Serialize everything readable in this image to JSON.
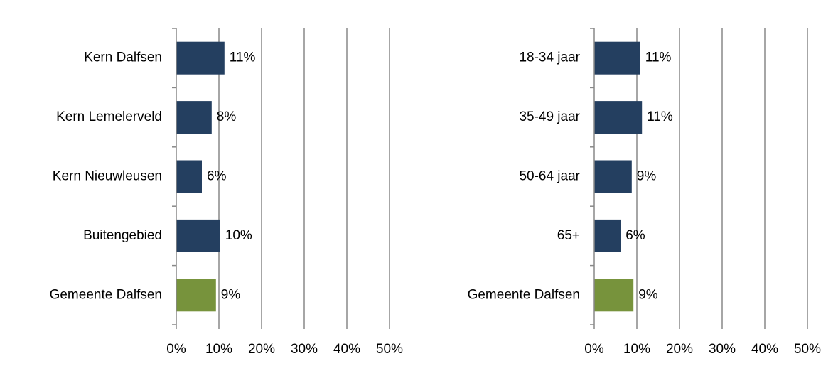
{
  "chart_data": [
    {
      "type": "barh",
      "categories": [
        "Kern Dalfsen",
        "Kern Lemelerveld",
        "Kern Nieuwleusen",
        "Buitengebied",
        "Gemeente Dalfsen"
      ],
      "values": [
        11.3,
        8.3,
        6,
        10.3,
        9.3
      ],
      "value_labels": [
        "11%",
        "8%",
        "6%",
        "10%",
        "9%"
      ],
      "colors": [
        "#243f60",
        "#243f60",
        "#243f60",
        "#243f60",
        "#77933c"
      ],
      "xlim": [
        0,
        50
      ],
      "xticks": [
        {
          "value": 0,
          "label": "0%"
        },
        {
          "value": 10,
          "label": "10%"
        },
        {
          "value": 20,
          "label": "20%"
        },
        {
          "value": 30,
          "label": "30%"
        },
        {
          "value": 40,
          "label": "40%"
        },
        {
          "value": 50,
          "label": "50%"
        }
      ],
      "grid": true
    },
    {
      "type": "barh",
      "categories": [
        "18-34 jaar",
        "35-49 jaar",
        "50-64 jaar",
        "65+",
        "Gemeente Dalfsen"
      ],
      "values": [
        10.8,
        11.2,
        8.8,
        6.2,
        9.2
      ],
      "value_labels": [
        "11%",
        "11%",
        "9%",
        "6%",
        "9%"
      ],
      "colors": [
        "#243f60",
        "#243f60",
        "#243f60",
        "#243f60",
        "#77933c"
      ],
      "xlim": [
        0,
        50
      ],
      "xticks": [
        {
          "value": 0,
          "label": "0%"
        },
        {
          "value": 10,
          "label": "10%"
        },
        {
          "value": 20,
          "label": "20%"
        },
        {
          "value": 30,
          "label": "30%"
        },
        {
          "value": 40,
          "label": "40%"
        },
        {
          "value": 50,
          "label": "50%"
        }
      ],
      "grid": true
    }
  ]
}
